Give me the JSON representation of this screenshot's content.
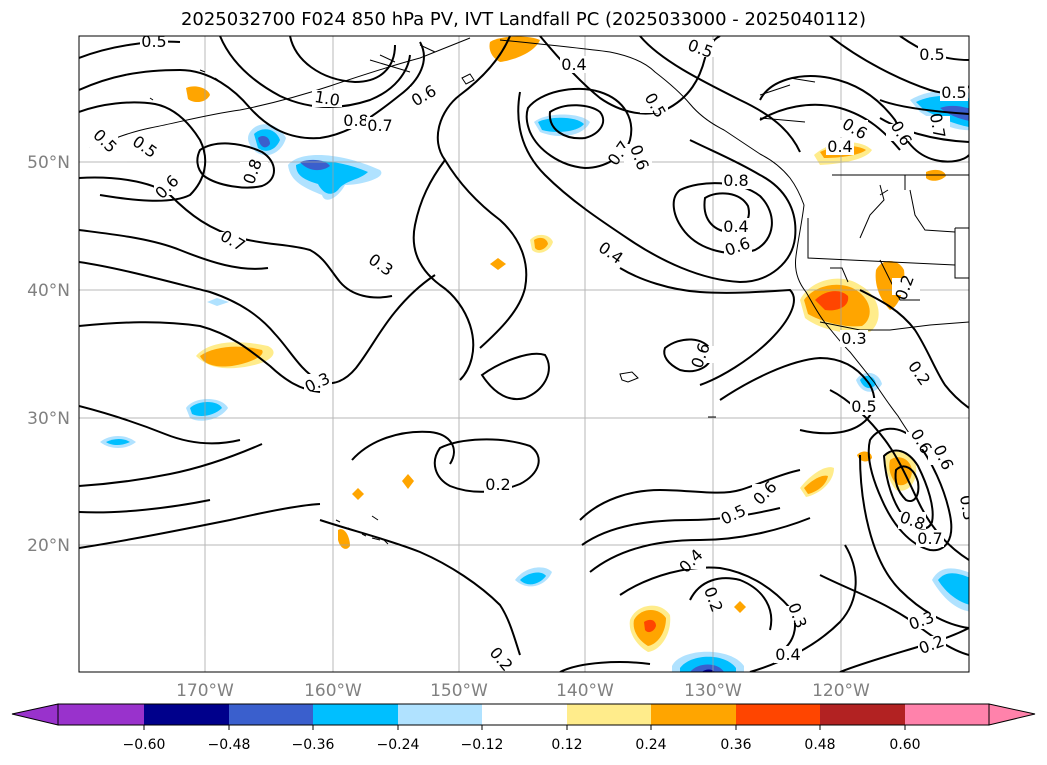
{
  "chart_data": {
    "type": "contour map",
    "title": "2025032700 F024 850 hPa PV, IVT Landfall PC (2025033000 - 2025040112)",
    "lat_labels": [
      "50°N",
      "40°N",
      "30°N",
      "20°N"
    ],
    "lon_labels": [
      "170°W",
      "160°W",
      "150°W",
      "140°W",
      "130°W",
      "120°W"
    ],
    "colorbar": {
      "ticks": [
        "−0.60",
        "−0.48",
        "−0.36",
        "−0.24",
        "−0.12",
        "0.12",
        "0.24",
        "0.36",
        "0.48",
        "0.60"
      ],
      "colors": [
        "#9932cc",
        "#00008b",
        "#3a5fcd",
        "#00bfff",
        "#b0e2ff",
        "#ffffff",
        "#ffec8b",
        "#ffa500",
        "#ff4500",
        "#b22222",
        "#ff82ab"
      ]
    },
    "contour_labels": [
      "0.5",
      "0.4",
      "0.5",
      "0.5",
      "0.5",
      "1.0",
      "0.8",
      "0.7",
      "0.6",
      "0.5",
      "0.6",
      "0.6",
      "0.4",
      "0.5",
      "0.6",
      "0.8",
      "0.7",
      "0.5",
      "0.7",
      "0.6",
      "0.8",
      "0.7",
      "0.4",
      "0.6",
      "0.4",
      "0.3",
      "0.2",
      "0.3",
      "0.6",
      "0.3",
      "0.2",
      "0.5",
      "0.6",
      "0.5",
      "0.6",
      "0.6",
      "0.4",
      "0.2",
      "0.8",
      "0.7",
      "0.3",
      "0.2",
      "0.3",
      "0.2",
      "0.3",
      "0.2",
      "0.4"
    ]
  }
}
